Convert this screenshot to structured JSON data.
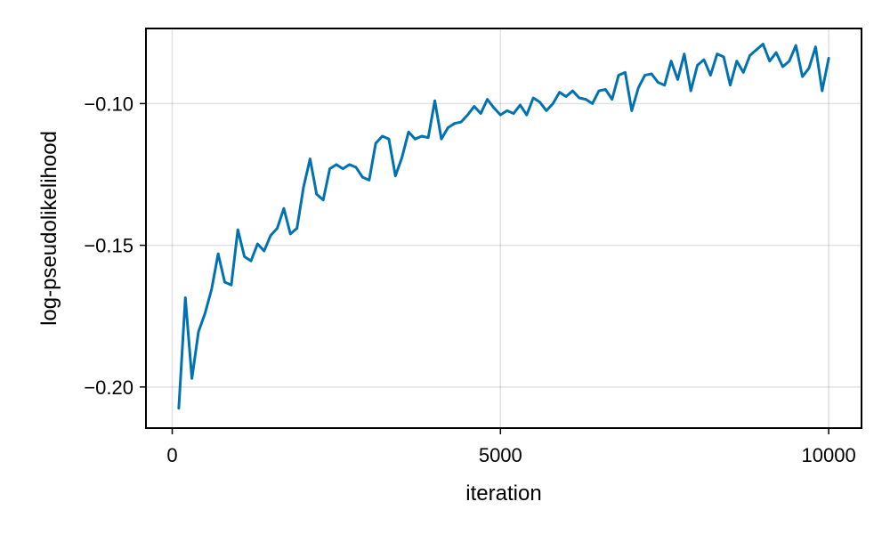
{
  "chart_data": {
    "type": "line",
    "title": "",
    "xlabel": "iteration",
    "ylabel": "log-pseudolikelihood",
    "xlim": [
      -400,
      10500
    ],
    "ylim": [
      -0.2145,
      -0.0735
    ],
    "x_ticks": [
      0,
      5000,
      10000
    ],
    "x_tick_labels": [
      "0",
      "5000",
      "10000"
    ],
    "y_ticks": [
      -0.2,
      -0.15,
      -0.1
    ],
    "y_tick_labels": [
      "−0.20",
      "−0.15",
      "−0.10"
    ],
    "grid": true,
    "legend": "none",
    "color": "#0072b2",
    "series": [
      {
        "x": [
          100,
          200,
          300,
          400,
          500,
          600,
          700,
          800,
          900,
          1000,
          1100,
          1200,
          1300,
          1400,
          1500,
          1600,
          1700,
          1800,
          1900,
          2000,
          2100,
          2200,
          2300,
          2400,
          2500,
          2600,
          2700,
          2800,
          2900,
          3000,
          3100,
          3200,
          3300,
          3400,
          3500,
          3600,
          3700,
          3800,
          3900,
          4000,
          4100,
          4200,
          4300,
          4400,
          4500,
          4600,
          4700,
          4800,
          4900,
          5000,
          5100,
          5200,
          5300,
          5400,
          5500,
          5600,
          5700,
          5800,
          5900,
          6000,
          6100,
          6200,
          6300,
          6400,
          6500,
          6600,
          6700,
          6800,
          6900,
          7000,
          7100,
          7200,
          7300,
          7400,
          7500,
          7600,
          7700,
          7800,
          7900,
          8000,
          8100,
          8200,
          8300,
          8400,
          8500,
          8600,
          8700,
          8800,
          8900,
          9000,
          9100,
          9200,
          9300,
          9400,
          9500,
          9600,
          9700,
          9800,
          9900,
          10000
        ],
        "values": [
          -0.2075,
          -0.1685,
          -0.197,
          -0.1805,
          -0.174,
          -0.1655,
          -0.153,
          -0.163,
          -0.164,
          -0.1445,
          -0.154,
          -0.1555,
          -0.1495,
          -0.152,
          -0.1465,
          -0.144,
          -0.137,
          -0.146,
          -0.144,
          -0.1295,
          -0.1195,
          -0.132,
          -0.134,
          -0.123,
          -0.1215,
          -0.123,
          -0.1215,
          -0.1225,
          -0.126,
          -0.127,
          -0.114,
          -0.1115,
          -0.1125,
          -0.1255,
          -0.119,
          -0.11,
          -0.1125,
          -0.1115,
          -0.112,
          -0.099,
          -0.1125,
          -0.1085,
          -0.107,
          -0.1065,
          -0.104,
          -0.101,
          -0.1035,
          -0.0985,
          -0.1015,
          -0.104,
          -0.1025,
          -0.1035,
          -0.1005,
          -0.104,
          -0.098,
          -0.0995,
          -0.1025,
          -0.1,
          -0.096,
          -0.0975,
          -0.0955,
          -0.098,
          -0.0985,
          -0.1,
          -0.0955,
          -0.095,
          -0.0985,
          -0.09,
          -0.089,
          -0.1025,
          -0.0945,
          -0.09,
          -0.0895,
          -0.0925,
          -0.0935,
          -0.085,
          -0.0915,
          -0.0825,
          -0.0955,
          -0.0865,
          -0.0845,
          -0.09,
          -0.0825,
          -0.0835,
          -0.0935,
          -0.085,
          -0.089,
          -0.083,
          -0.081,
          -0.079,
          -0.085,
          -0.082,
          -0.087,
          -0.085,
          -0.0795,
          -0.0905,
          -0.0875,
          -0.08,
          -0.0955,
          -0.084
        ]
      }
    ]
  }
}
